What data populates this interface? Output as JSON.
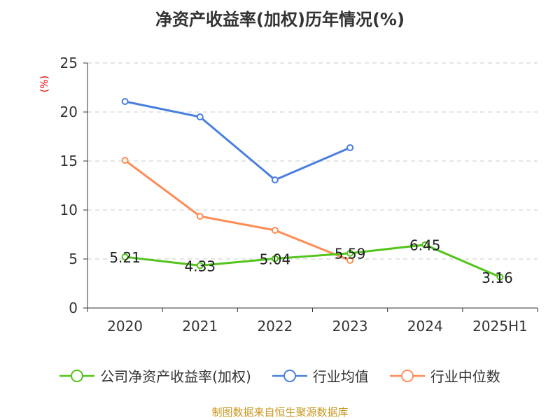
{
  "chart_data": {
    "type": "line",
    "title": "净资产收益率(加权)历年情况(%)",
    "ylabel": "(%)",
    "categories": [
      "2020",
      "2021",
      "2022",
      "2023",
      "2024",
      "2025H1"
    ],
    "ylim": [
      0,
      25
    ],
    "yticks": [
      0,
      5,
      10,
      15,
      20,
      25
    ],
    "grid": true,
    "legend_position": "bottom",
    "series": [
      {
        "name": "公司净资产收益率(加权)",
        "color": "#52c41a",
        "values": [
          5.21,
          4.33,
          5.04,
          5.59,
          6.45,
          3.16
        ],
        "labels": [
          "5.21",
          "4.33",
          "5.04",
          "5.59",
          "6.45",
          "3.16"
        ]
      },
      {
        "name": "行业均值",
        "color": "#4a7fe0",
        "values": [
          21.07,
          19.5,
          13.07,
          16.36,
          null,
          null
        ]
      },
      {
        "name": "行业中位数",
        "color": "#ff8c55",
        "values": [
          15.07,
          9.36,
          7.93,
          4.86,
          null,
          null
        ]
      }
    ]
  },
  "source": "制图数据来自恒生聚源数据库"
}
